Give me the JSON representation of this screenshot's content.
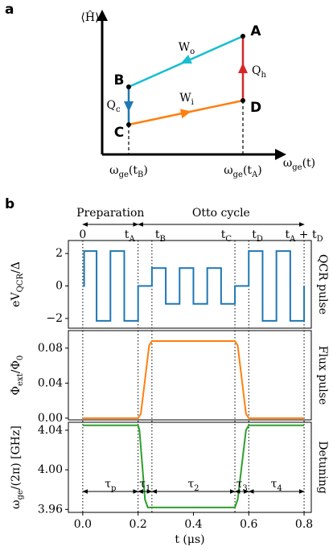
{
  "panel_a": {
    "label": "a",
    "y_label": "⟨Ĥ⟩",
    "x_label": [
      "ω",
      "ge",
      "(t)"
    ],
    "x_ticks": [
      [
        "ω",
        "ge",
        "(t",
        "B",
        ")"
      ],
      [
        "ω",
        "ge",
        "(t",
        "A",
        ")"
      ]
    ],
    "points": [
      "A",
      "B",
      "C",
      "D"
    ],
    "works": [
      [
        "W",
        "o"
      ],
      [
        "W",
        "i"
      ]
    ],
    "heats": [
      [
        "Q",
        "h"
      ],
      [
        "Q",
        "c"
      ]
    ]
  },
  "panel_b": {
    "label": "b",
    "phases": [
      "Preparation",
      "Otto cycle"
    ],
    "time_markers": [
      {
        "value": 0,
        "label": [
          "0"
        ]
      },
      {
        "value": 0.2,
        "label": [
          "t",
          "A"
        ]
      },
      {
        "value": 0.25,
        "label": [
          "t",
          "B"
        ]
      },
      {
        "value": 0.55,
        "label": [
          "t",
          "C"
        ]
      },
      {
        "value": 0.6,
        "label": [
          "t",
          "D"
        ]
      },
      {
        "value": 0.8,
        "label": [
          "t",
          "A",
          " + t",
          "D"
        ]
      }
    ],
    "intervals": [
      [
        "τ",
        "p"
      ],
      [
        "τ",
        "1"
      ],
      [
        "τ",
        "2"
      ],
      [
        "τ",
        "3"
      ],
      [
        "τ",
        "4"
      ]
    ],
    "x_label": "t (μs)"
  },
  "chart_data": [
    {
      "type": "line",
      "y_label": [
        "eV",
        "QCR",
        "/Δ"
      ],
      "side_label": "QCR pulse",
      "x": [
        0,
        0.005,
        0.005,
        0.05,
        0.05,
        0.1,
        0.1,
        0.15,
        0.15,
        0.2,
        0.2,
        0.25,
        0.25,
        0.3,
        0.3,
        0.35,
        0.35,
        0.4,
        0.4,
        0.45,
        0.45,
        0.5,
        0.5,
        0.55,
        0.55,
        0.6,
        0.6,
        0.65,
        0.65,
        0.7,
        0.7,
        0.75,
        0.75,
        0.8,
        0.8
      ],
      "series": [
        {
          "color": "#1f77b4",
          "values": [
            0,
            0,
            2.15,
            2.15,
            -2.15,
            -2.15,
            2.15,
            2.15,
            -2.15,
            -2.15,
            0,
            0,
            1.1,
            1.1,
            -1.1,
            -1.1,
            1.1,
            1.1,
            -1.1,
            -1.1,
            1.1,
            1.1,
            -1.1,
            -1.1,
            0,
            0,
            2.15,
            2.15,
            -2.15,
            -2.15,
            2.15,
            2.15,
            -2.15,
            -2.15,
            0
          ]
        }
      ],
      "xlim": [
        -0.052,
        0.826
      ],
      "ylim": [
        -2.6,
        2.8
      ],
      "yticks": [
        {
          "value": -2,
          "label": "−2"
        },
        0,
        2
      ]
    },
    {
      "type": "line",
      "y_label": [
        "Φ",
        "ext",
        "/Φ",
        "0"
      ],
      "side_label": "Flux pulse",
      "x": [
        0,
        0.2,
        0.21,
        0.225,
        0.24,
        0.25,
        0.55,
        0.56,
        0.575,
        0.59,
        0.6,
        0.8
      ],
      "series": [
        {
          "color": "#ff7f0e",
          "values": [
            0,
            0,
            0.005,
            0.044,
            0.083,
            0.088,
            0.088,
            0.083,
            0.044,
            0.005,
            0,
            0
          ]
        }
      ],
      "xlim": [
        -0.052,
        0.826
      ],
      "ylim": [
        -0.002,
        0.1
      ],
      "yticks": [
        {
          "value": 0,
          "label": "0.00"
        },
        {
          "value": 0.04,
          "label": "0.04"
        },
        {
          "value": 0.08,
          "label": "0.08"
        }
      ]
    },
    {
      "type": "line",
      "y_label": [
        "ω",
        "ge",
        "/(2π) [GHz]"
      ],
      "side_label": "Detuning",
      "x": [
        0,
        0.2,
        0.205,
        0.215,
        0.225,
        0.235,
        0.55,
        0.56,
        0.575,
        0.59,
        0.6,
        0.8
      ],
      "series": [
        {
          "color": "#2ca02c",
          "values": [
            4.045,
            4.045,
            4.04,
            4.005,
            3.97,
            3.962,
            3.962,
            3.97,
            4.005,
            4.04,
            4.045,
            4.045
          ]
        }
      ],
      "xlim": [
        -0.052,
        0.826
      ],
      "ylim": [
        3.957,
        4.048
      ],
      "yticks": [
        {
          "value": 3.96,
          "label": "3.96"
        },
        {
          "value": 4.0,
          "label": "4.00"
        },
        {
          "value": 4.04,
          "label": "4.04"
        }
      ],
      "xticks": [
        {
          "value": 0,
          "label": "0.0"
        },
        {
          "value": 0.2,
          "label": "0.2"
        },
        {
          "value": 0.4,
          "label": "0.4"
        },
        {
          "value": 0.6,
          "label": "0.6"
        },
        {
          "value": 0.8,
          "label": "0.8"
        }
      ]
    }
  ]
}
